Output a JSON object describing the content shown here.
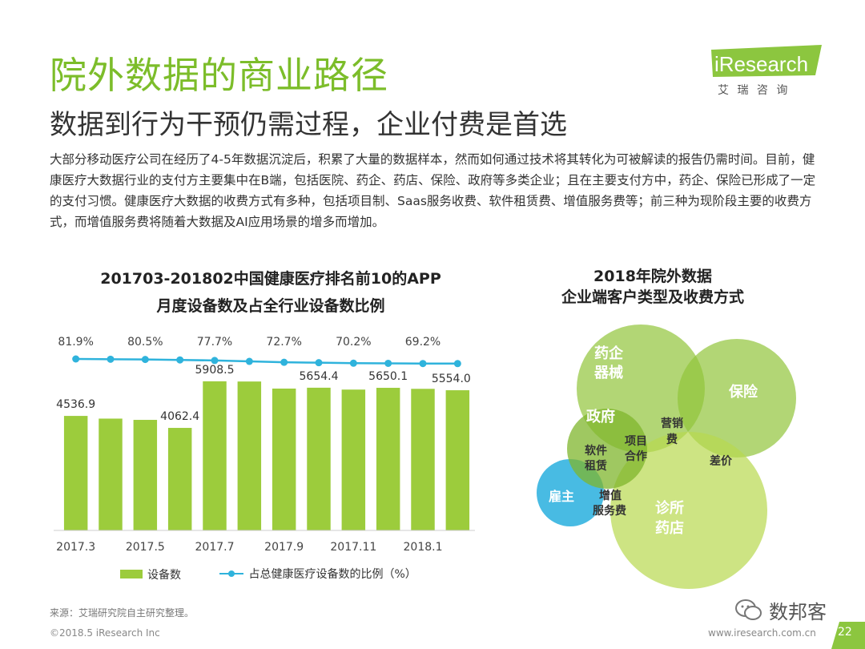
{
  "header": {
    "title": "院外数据的商业路径",
    "subtitle": "数据到行为干预仍需过程，企业付费是首选"
  },
  "logo": {
    "brand": "iResearch",
    "cn": "艾 瑞 咨 询"
  },
  "intro": "大部分移动医疗公司在经历了4-5年数据沉淀后，积累了大量的数据样本，然而如何通过技术将其转化为可被解读的报告仍需时间。目前，健康医疗大数据行业的支付方主要集中在B端，包括医院、药企、药店、保险、政府等多类企业；且在主要支付方中，药企、保险已形成了一定的支付习惯。健康医疗大数据的收费方式有多种，包括项目制、Saas服务收费、软件租赁费、增值服务费等；前三种为现阶段主要的收费方式，而增值服务费将随着大数据及AI应用场景的增多而增加。",
  "colors": {
    "accent": "#7cbd2a",
    "bar": "#9ccc3c",
    "line": "#2fb3dc"
  },
  "chart_data": {
    "type": "bar+line",
    "title_line1": "201703-201802中国健康医疗排名前10的APP",
    "title_line2": "月度设备数及占全行业设备数比例",
    "categories": [
      "2017.3",
      "2017.4",
      "2017.5",
      "2017.6",
      "2017.7",
      "2017.8",
      "2017.9",
      "2017.10",
      "2017.11",
      "2017.12",
      "2018.1",
      "2018.2"
    ],
    "tick_labels": [
      "2017.3",
      "",
      "2017.5",
      "",
      "2017.7",
      "",
      "2017.9",
      "",
      "2017.11",
      "",
      "2018.1",
      ""
    ],
    "series": [
      {
        "name": "设备数",
        "kind": "bar",
        "values": [
          4536.9,
          4430,
          4380,
          4062.4,
          5908.5,
          5900,
          5620,
          5654.4,
          5580,
          5650.1,
          5610,
          5554.0
        ],
        "labels": [
          "4536.9",
          "",
          "",
          "4062.4",
          "5908.5",
          "",
          "",
          "5654.4",
          "",
          "5650.1",
          "",
          "5554.0"
        ]
      },
      {
        "name": "占总健康医疗设备数的比例（%）",
        "kind": "line",
        "values": [
          81.9,
          81.2,
          80.5,
          79.2,
          77.7,
          75.2,
          72.7,
          71.5,
          70.2,
          69.7,
          69.2,
          69.0
        ],
        "labels": [
          "81.9%",
          "",
          "80.5%",
          "",
          "77.7%",
          "",
          "72.7%",
          "",
          "70.2%",
          "",
          "69.2%",
          ""
        ]
      }
    ],
    "bar_ylim": [
      0,
      6000
    ],
    "line_ylim": [
      60,
      90
    ]
  },
  "legend": {
    "bar": "设备数",
    "line": "占总健康医疗设备数的比例（%）"
  },
  "venn": {
    "title_line1": "2018年院外数据",
    "title_line2": "企业端客户类型及收费方式",
    "circles": [
      "药企器械",
      "保险",
      "雇主",
      "诊所药店"
    ],
    "labels": {
      "pharma": [
        "药企",
        "器械"
      ],
      "insurance": "保险",
      "employer": "雇主",
      "clinic": [
        "诊所",
        "药店"
      ],
      "government": "政府",
      "marketing": [
        "营销",
        "费"
      ],
      "software": [
        "软件",
        "租赁"
      ],
      "project": [
        "项目",
        "合作"
      ],
      "spread": "差价",
      "value_added": [
        "增值",
        "服务费"
      ]
    }
  },
  "footer": {
    "source": "来源：艾瑞研究院自主研究整理。",
    "copyright": "©2018.5 iResearch Inc",
    "website": "www.iresearch.com.cn",
    "page": "22",
    "watermark": "数邦客"
  }
}
